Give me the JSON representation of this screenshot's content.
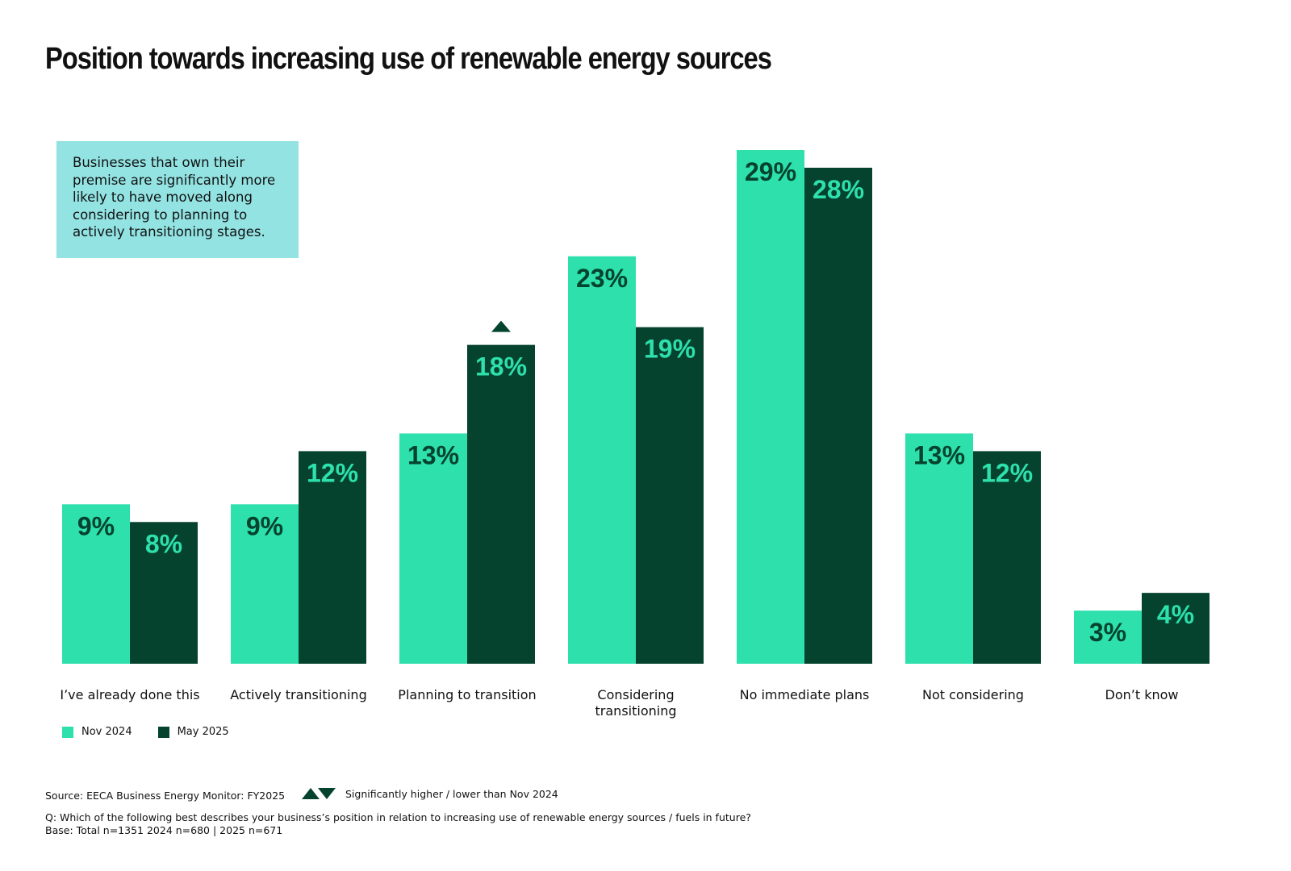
{
  "title": "Position towards increasing use of renewable energy sources",
  "callout": "Businesses that own their premise are significantly more likely to have moved along considering to planning to actively transitioning stages.",
  "colors": {
    "nov": "#2de0ac",
    "may": "#05432e",
    "callout_bg": "#93e3e3"
  },
  "chart_data": {
    "type": "bar",
    "title": "Position towards increasing use of renewable energy sources",
    "categories": [
      [
        "I’ve already done this"
      ],
      [
        "Actively transitioning"
      ],
      [
        "Planning to transition"
      ],
      [
        "Considering",
        "transitioning"
      ],
      [
        "No immediate plans"
      ],
      [
        "Not considering"
      ],
      [
        "Don’t know"
      ]
    ],
    "series": [
      {
        "name": "Nov 2024",
        "values": [
          9,
          9,
          13,
          23,
          29,
          13,
          3
        ],
        "labels": [
          "9%",
          "9%",
          "13%",
          "23%",
          "29%",
          "13%",
          "3%"
        ]
      },
      {
        "name": "May 2025",
        "values": [
          8,
          12,
          18,
          19,
          28,
          12,
          4
        ],
        "labels": [
          "8%",
          "12%",
          "18%",
          "19%",
          "28%",
          "12%",
          "4%"
        ]
      }
    ],
    "significance": [
      {
        "category_index": 2,
        "series_index": 1,
        "direction": "higher"
      }
    ],
    "ylim": [
      0,
      29
    ],
    "xlabel": "",
    "ylabel": "",
    "legend": "bottom-left"
  },
  "legend": {
    "nov": "Nov 2024",
    "may": "May 2025"
  },
  "footer": {
    "source": "Source: EECA Business Energy Monitor: FY2025",
    "significance": "Significantly higher / lower than Nov 2024",
    "question": "Q: Which of the following best describes your business’s position in relation to increasing use of renewable energy sources / fuels in future?",
    "base": "Base: Total n=1351 2024 n=680 | 2025 n=671"
  }
}
